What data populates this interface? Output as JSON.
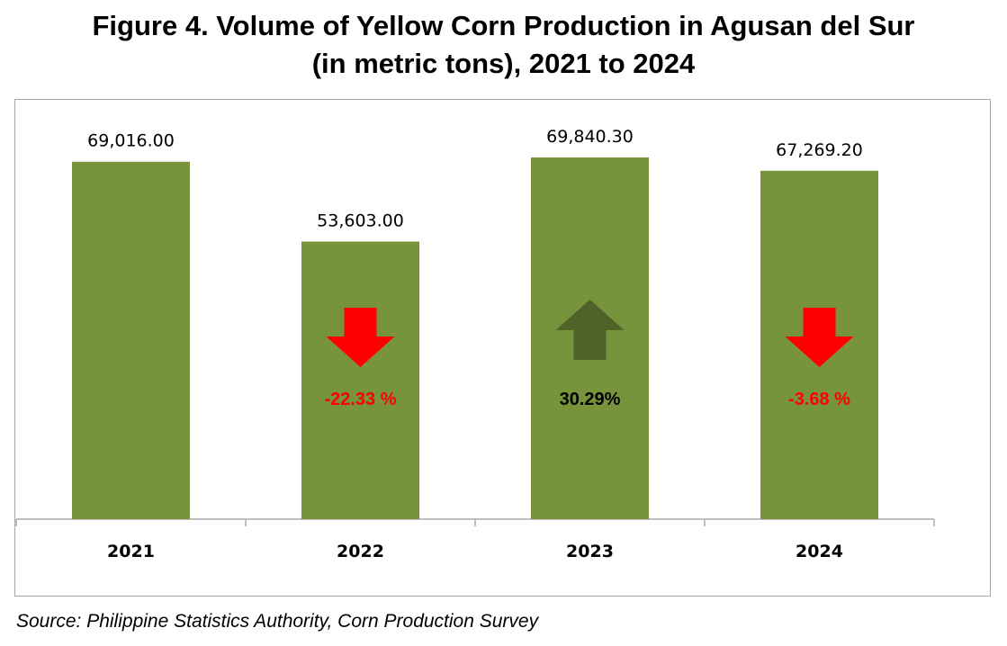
{
  "title_line1": "Figure 4. Volume of Yellow Corn Production in Agusan del Sur",
  "title_line2": "(in metric tons), 2021 to 2024",
  "source": "Source: Philippine Statistics Authority, Corn Production Survey",
  "colors": {
    "bar": "#77933c",
    "down_arrow": "#ff0000",
    "up_arrow": "#4f6228",
    "down_text": "#ff0000",
    "up_text": "#000000"
  },
  "chart_data": {
    "type": "bar",
    "categories": [
      "2021",
      "2022",
      "2023",
      "2024"
    ],
    "values": [
      69016.0,
      53603.0,
      69840.3,
      67269.2
    ],
    "value_labels": [
      "69,016.00",
      "53,603.00",
      "69,840.30",
      "67,269.20"
    ],
    "changes": [
      null,
      {
        "label": "-22.33 %",
        "direction": "down"
      },
      {
        "label": "30.29%",
        "direction": "up"
      },
      {
        "label": "-3.68 %",
        "direction": "down"
      }
    ],
    "ylim": [
      0,
      80000
    ],
    "grid": false,
    "legend": "none"
  }
}
